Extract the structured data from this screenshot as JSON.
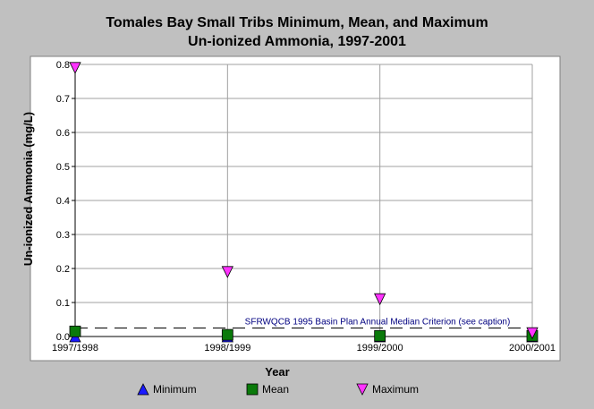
{
  "title_lines": [
    "Tomales Bay Small Tribs Minimum, Mean, and Maximum",
    "Un-ionized Ammonia, 1997-2001"
  ],
  "colors": {
    "background": "#c0c0c0",
    "plot_bg": "#ffffff",
    "grid": "#a0a0a0",
    "minimum": "#1a1aff",
    "mean": "#0a7a0a",
    "maximum": "#ff33ff",
    "criterion": "#000080"
  },
  "chart_data": {
    "type": "scatter",
    "title": "Tomales Bay Small Tribs Minimum, Mean, and Maximum Un-ionized Ammonia, 1997-2001",
    "xlabel": "Year",
    "ylabel": "Un-ionized Ammonia (mg/L)",
    "categories": [
      "1997/1998",
      "1998/1999",
      "1999/2000",
      "2000/2001"
    ],
    "ylim": [
      0,
      0.8
    ],
    "yticks": [
      "0.0",
      "0.1",
      "0.2",
      "0.3",
      "0.4",
      "0.5",
      "0.6",
      "0.7",
      "0.8"
    ],
    "grid": true,
    "legend_position": "bottom",
    "series": [
      {
        "name": "Minimum",
        "marker": "triangle-up",
        "values": [
          0.0,
          0.0,
          0.0,
          0.0
        ]
      },
      {
        "name": "Mean",
        "marker": "square",
        "values": [
          0.015,
          0.005,
          0.002,
          0.002
        ]
      },
      {
        "name": "Maximum",
        "marker": "triangle-down",
        "values": [
          0.79,
          0.19,
          0.11,
          0.01
        ]
      }
    ],
    "reference_line": {
      "value": 0.025,
      "label": "SFRWQCB 1995 Basin Plan Annual Median Criterion (see caption)"
    }
  }
}
